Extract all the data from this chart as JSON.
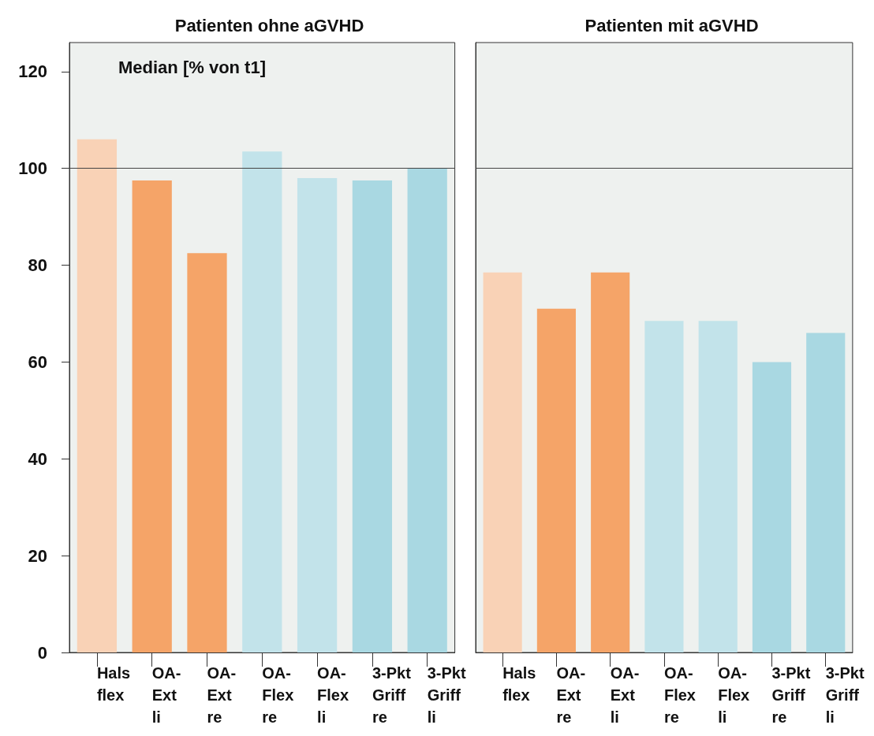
{
  "chart_data": [
    {
      "type": "bar",
      "title": "Patienten ohne aGVHD",
      "annotations": [
        "Median [% von t1]"
      ],
      "categories": [
        "Hals\nflex",
        "OA-\nExt\nli",
        "OA-\nExt\nre",
        "OA-\nFlex\nre",
        "OA-\nFlex\nli",
        "3-Pkt\nGriff\nre",
        "3-Pkt\nGriff\nli"
      ],
      "values": [
        106,
        97.5,
        82.5,
        103.5,
        98,
        97.5,
        100
      ],
      "colors": [
        "#f9d2b6",
        "#f5a468",
        "#f5a468",
        "#c2e3ea",
        "#c2e3ea",
        "#a9d8e2",
        "#a9d8e2"
      ],
      "ylim": [
        0,
        126
      ],
      "yticks": [
        0,
        20,
        40,
        60,
        80,
        100,
        120
      ],
      "ref_lines": [
        {
          "axis": "y",
          "value": 100
        }
      ],
      "grid": false
    },
    {
      "type": "bar",
      "title": "Patienten mit aGVHD",
      "categories": [
        "Hals\nflex",
        "OA-\nExt\nre",
        "OA-\nExt\nli",
        "OA-\nFlex\nre",
        "OA-\nFlex\nli",
        "3-Pkt\nGriff\nre",
        "3-Pkt\nGriff\nli"
      ],
      "values": [
        78.5,
        71,
        78.5,
        68.5,
        68.5,
        60,
        66
      ],
      "colors": [
        "#f9d2b6",
        "#f5a468",
        "#f5a468",
        "#c2e3ea",
        "#c2e3ea",
        "#a9d8e2",
        "#a9d8e2"
      ],
      "ylim": [
        0,
        126
      ],
      "yticks": [
        0,
        20,
        40,
        60,
        80,
        100,
        120
      ],
      "ref_lines": [
        {
          "axis": "y",
          "value": 100
        }
      ],
      "grid": false,
      "tick_labels": "x"
    }
  ]
}
